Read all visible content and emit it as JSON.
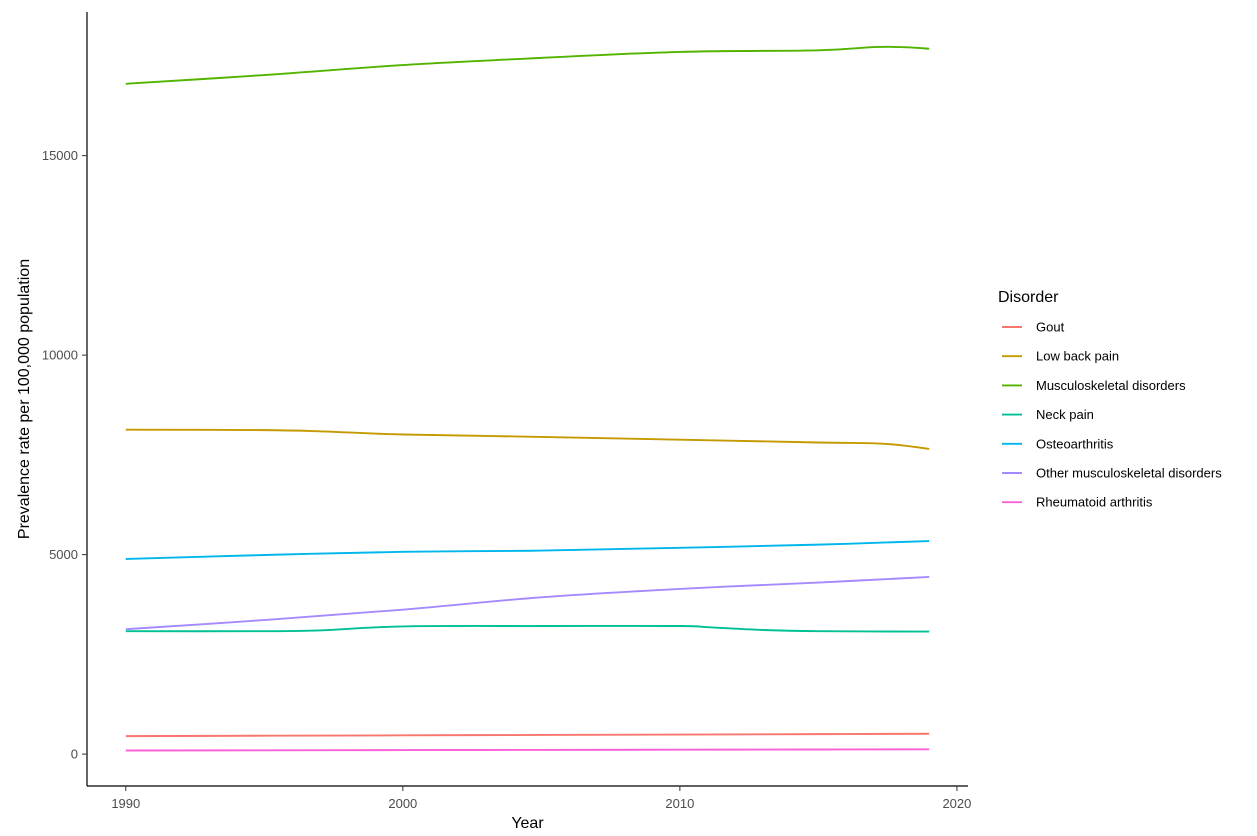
{
  "chart_data": {
    "type": "line",
    "xlabel": "Year",
    "ylabel": "Prevalence rate per 100,000 population",
    "xlim": [
      1988.6,
      2020.4
    ],
    "ylim": [
      -800,
      18600
    ],
    "x_ticks": [
      1990,
      2000,
      2010,
      2020
    ],
    "y_ticks": [
      0,
      5000,
      10000,
      15000
    ],
    "grid": false,
    "legend": {
      "title": "Disorder",
      "position": "right"
    },
    "series": [
      {
        "name": "Gout",
        "color": "#F8766D",
        "x": [
          1990,
          1995,
          2000,
          2005,
          2010,
          2015,
          2019
        ],
        "y": [
          450,
          460,
          470,
          480,
          490,
          500,
          510
        ]
      },
      {
        "name": "Low back pain",
        "color": "#C49A00",
        "x": [
          1990,
          1995,
          1997,
          2000,
          2005,
          2010,
          2015,
          2017,
          2018,
          2019
        ],
        "y": [
          8130,
          8120,
          8090,
          8010,
          7950,
          7880,
          7810,
          7790,
          7740,
          7650
        ]
      },
      {
        "name": "Musculoskeletal disorders",
        "color": "#53B400",
        "x": [
          1990,
          1995,
          2000,
          2005,
          2010,
          2015,
          2017,
          2018,
          2019
        ],
        "y": [
          16800,
          17020,
          17270,
          17450,
          17600,
          17640,
          17720,
          17720,
          17680
        ]
      },
      {
        "name": "Neck pain",
        "color": "#00C094",
        "x": [
          1990,
          1995,
          1997,
          2000,
          2005,
          2010,
          2011,
          2013,
          2015,
          2019
        ],
        "y": [
          3080,
          3080,
          3100,
          3200,
          3210,
          3210,
          3180,
          3110,
          3080,
          3070
        ]
      },
      {
        "name": "Osteoarthritis",
        "color": "#00B6EB",
        "x": [
          1990,
          1995,
          2000,
          2005,
          2010,
          2015,
          2019
        ],
        "y": [
          4890,
          4990,
          5070,
          5100,
          5170,
          5250,
          5340
        ]
      },
      {
        "name": "Other musculoskeletal disorders",
        "color": "#A58AFF",
        "x": [
          1990,
          1995,
          2000,
          2005,
          2010,
          2015,
          2019
        ],
        "y": [
          3130,
          3360,
          3620,
          3930,
          4140,
          4300,
          4440
        ]
      },
      {
        "name": "Rheumatoid arthritis",
        "color": "#FB61D7",
        "x": [
          1990,
          1995,
          2000,
          2005,
          2010,
          2015,
          2019
        ],
        "y": [
          90,
          95,
          100,
          105,
          110,
          115,
          120
        ]
      }
    ]
  }
}
